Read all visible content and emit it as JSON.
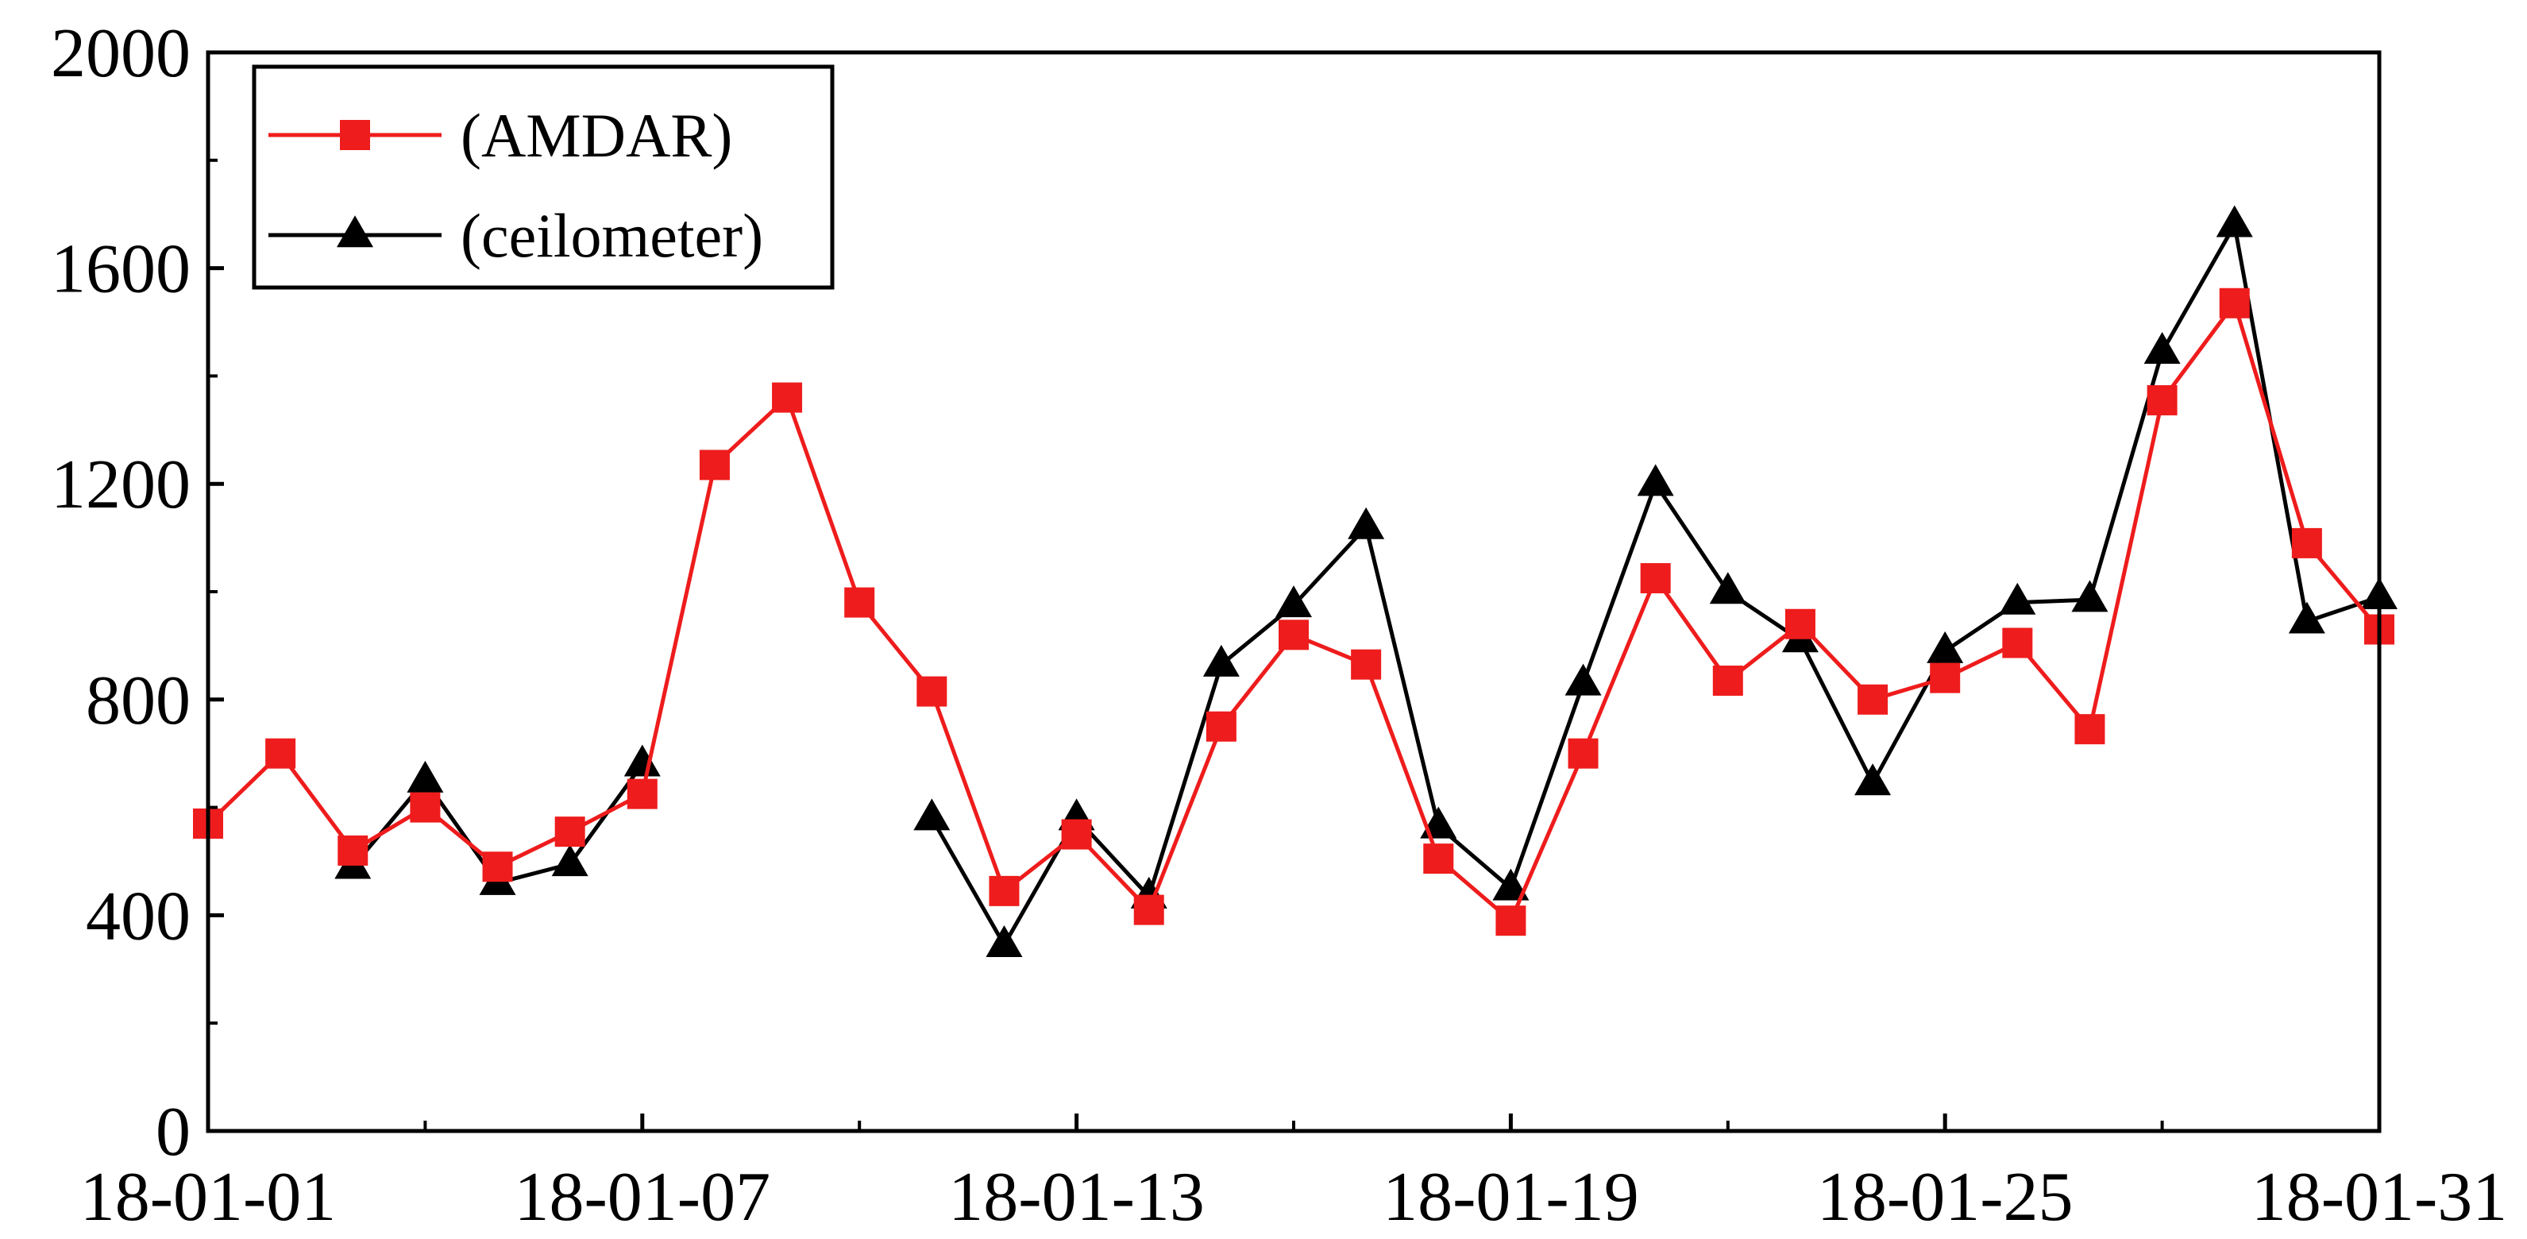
{
  "chart_data": {
    "type": "line",
    "title": "",
    "xlabel": "",
    "ylabel": "",
    "x": [
      "18-01-01",
      "18-01-02",
      "18-01-03",
      "18-01-04",
      "18-01-05",
      "18-01-06",
      "18-01-07",
      "18-01-08",
      "18-01-09",
      "18-01-10",
      "18-01-11",
      "18-01-12",
      "18-01-13",
      "18-01-14",
      "18-01-15",
      "18-01-16",
      "18-01-17",
      "18-01-18",
      "18-01-19",
      "18-01-20",
      "18-01-21",
      "18-01-22",
      "18-01-23",
      "18-01-24",
      "18-01-25",
      "18-01-26",
      "18-01-27",
      "18-01-28",
      "18-01-29",
      "18-01-30",
      "18-01-31"
    ],
    "x_tick_labels": [
      "18-01-01",
      "18-01-07",
      "18-01-13",
      "18-01-19",
      "18-01-25",
      "18-01-31"
    ],
    "ylim": [
      0,
      2000
    ],
    "y_ticks": [
      0,
      400,
      800,
      1200,
      1600,
      2000
    ],
    "grid": false,
    "legend_position": "top-left",
    "series": [
      {
        "name": "(AMDAR)",
        "color": "#ee1c1c",
        "marker": "square",
        "values": [
          570,
          700,
          520,
          600,
          490,
          555,
          625,
          1235,
          1360,
          980,
          815,
          445,
          550,
          410,
          750,
          920,
          865,
          505,
          390,
          700,
          1025,
          835,
          940,
          800,
          840,
          905,
          745,
          1355,
          1535,
          1090,
          930
        ]
      },
      {
        "name": "(ceilometer)",
        "color": "#000000",
        "marker": "triangle",
        "values": [
          null,
          null,
          490,
          650,
          460,
          495,
          680,
          null,
          null,
          null,
          580,
          345,
          580,
          435,
          865,
          975,
          1120,
          565,
          450,
          830,
          1200,
          1000,
          910,
          645,
          890,
          980,
          985,
          1445,
          1680,
          945,
          990
        ]
      }
    ]
  }
}
